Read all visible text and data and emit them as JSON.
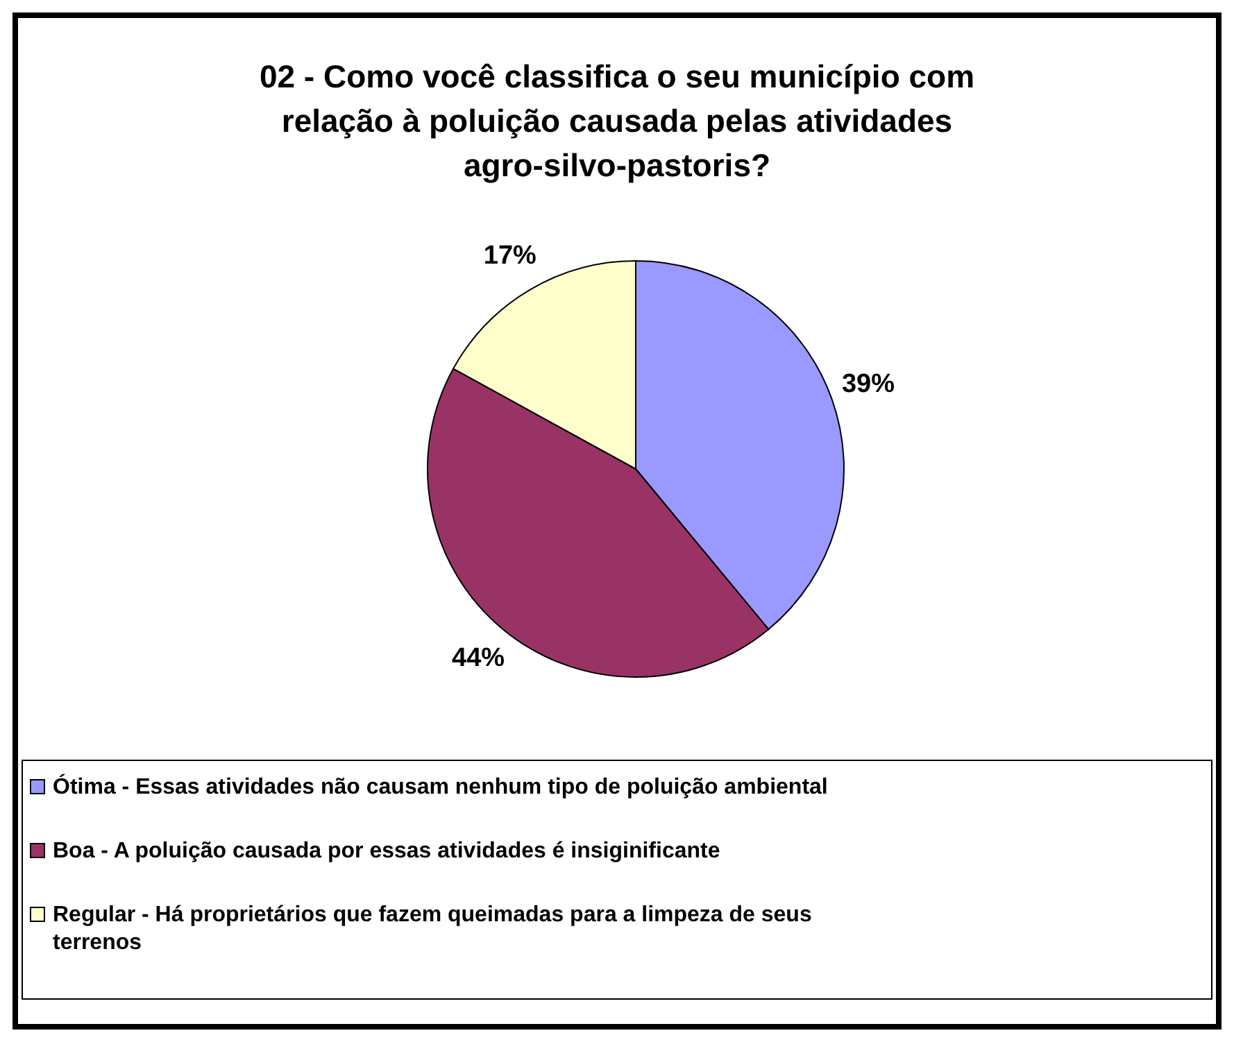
{
  "chart_data": {
    "type": "pie",
    "title": "02 - Como você classifica o seu município com relação à poluição causada pelas atividades agro-silvo-pastoris?",
    "categories": [
      "Ótima - Essas atividades não causam nenhum tipo de poluição ambiental",
      "Boa - A poluição causada por essas atividades é insiginificante",
      "Regular - Há proprietários que fazem queimadas para a limpeza de seus terrenos"
    ],
    "values": [
      39,
      44,
      17
    ],
    "value_labels": [
      "39%",
      "44%",
      "17%"
    ],
    "colors": [
      "#9999ff",
      "#993366",
      "#ffffcc"
    ],
    "legend": "bottom"
  }
}
